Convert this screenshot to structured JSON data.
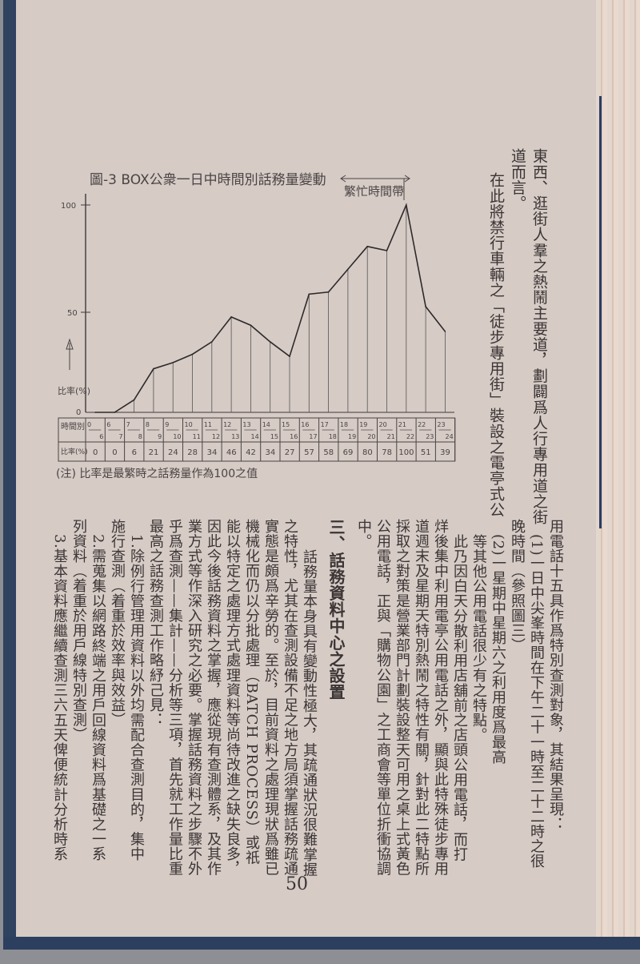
{
  "chart_data": {
    "type": "line",
    "title": "圖-3 BOX公衆一日中時間別話務量變動",
    "annotation": "繁忙時間帶",
    "ylabel": "比率(%)",
    "ylim": [
      0,
      100
    ],
    "yticks": [
      "100",
      "50",
      "0"
    ],
    "row_header_time": "時間別",
    "row_header_ratio": "比率(%)",
    "categories": [
      {
        "from": "0",
        "to": "6"
      },
      {
        "from": "6",
        "to": "7"
      },
      {
        "from": "7",
        "to": "8"
      },
      {
        "from": "8",
        "to": "9"
      },
      {
        "from": "9",
        "to": "10"
      },
      {
        "from": "10",
        "to": "11"
      },
      {
        "from": "11",
        "to": "12"
      },
      {
        "from": "12",
        "to": "13"
      },
      {
        "from": "13",
        "to": "14"
      },
      {
        "from": "14",
        "to": "15"
      },
      {
        "from": "15",
        "to": "16"
      },
      {
        "from": "16",
        "to": "17"
      },
      {
        "from": "17",
        "to": "18"
      },
      {
        "from": "18",
        "to": "19"
      },
      {
        "from": "19",
        "to": "20"
      },
      {
        "from": "20",
        "to": "21"
      },
      {
        "from": "21",
        "to": "22"
      },
      {
        "from": "22",
        "to": "23"
      },
      {
        "from": "23",
        "to": "24"
      }
    ],
    "values": [
      0,
      0,
      6,
      21,
      24,
      28,
      34,
      46,
      42,
      34,
      27,
      57,
      58,
      69,
      80,
      78,
      100,
      51,
      39
    ],
    "peak_band": [
      "20",
      "22"
    ],
    "note": "(注) 比率是最繁時之話務量作為100之值",
    "grid": false
  },
  "top_text": [
    "東西、逛街人羣之熱鬧主要道，劃闢爲人行專用道之街",
    "道而言。",
    "在此將禁行車輛之「徒步專用街」裝設之電亭式公"
  ],
  "body_text": [
    "用電話十五具作爲特別查測對象，其結果呈現：",
    "(1)一日中尖峯時間在下午二十一時至二十二時之很",
    "晚時間（參照圖三）",
    "(2)一星期中星期六之利用度爲最高",
    "等其他公用電話很少有之特點。",
    "此乃因白天分散利用店舖前之店頭公用電話，而打",
    "烊後集中利用電亭公用電話之外，顯與此特殊徒步專用",
    "道週末及星期天特別熱鬧之特性有關，針對此二特點所",
    "採取之對策是營業部門計劃裝設整天可用之桌上式黃色",
    "公用電話，正與「購物公園」之工商會等單位折衝協調",
    "中。"
  ],
  "section_heading": "三、話務資料中心之設置",
  "section_text": [
    "話務量本身具有變動性極大，其疏通狀況很難掌握",
    "之特性，尤其在查測設備不足之地方局須掌握話務疏通",
    "實態是頗爲辛勞的。至於，目前資料之處理現狀爲雖已",
    "機械化而仍以分批處理（BATCH PROCESS）或祇",
    "能以特定之處理方式處理資料等尚待改進之缺失良多，",
    "因此今後話務資料之掌握，應從現有查測體系，及其作",
    "業方式等作深入研究之必要。掌握話務資料之步驟不外",
    "乎爲查測——集計——分析等三項，首先就工作量比重",
    "最高之話務查測工作略紓己見：",
    "1.除例行管理用資料以外均需配合查測目的，集中",
    "施行查測（着重於效率與效益）",
    "2.需蒐集以網路終端之用戶回線資料爲基礎之一系",
    "列資料（着重於用戶線特別查測）",
    "3.基本資料應繼續查測三六五天俾便統計分析時系"
  ],
  "page_number": "50"
}
